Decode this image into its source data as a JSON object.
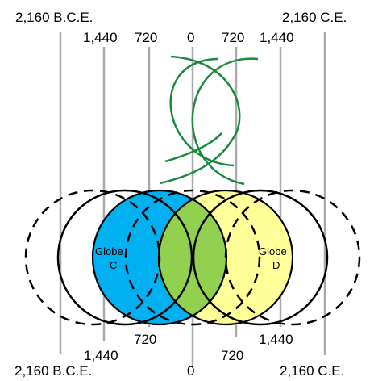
{
  "labels": {
    "top_left_far": "2,160 B.C.E.",
    "top_right_far": "2,160 C.E.",
    "top_left_1440": "1,440",
    "top_left_720": "720",
    "top_zero": "0",
    "top_right_720": "720",
    "top_right_1440": "1,440",
    "bottom_left_far": "2,160 B.C.E.",
    "bottom_right_far": "2,160 C.E.",
    "bottom_left_1440": "1,440",
    "bottom_left_720": "720",
    "bottom_zero": "0",
    "bottom_right_720": "720",
    "bottom_right_1440": "1,440"
  },
  "globes": {
    "c_line1": "Globe",
    "c_line2": "C",
    "d_line1": "Globe",
    "d_line2": "D"
  },
  "colors": {
    "timeline": "#aaaaaa",
    "globe_c_fill": "#00b0f0",
    "globe_d_fill": "#ffff99",
    "overlap_fill": "#92d050",
    "fish_stroke": "#1a8a3c",
    "outline": "#000000"
  }
}
